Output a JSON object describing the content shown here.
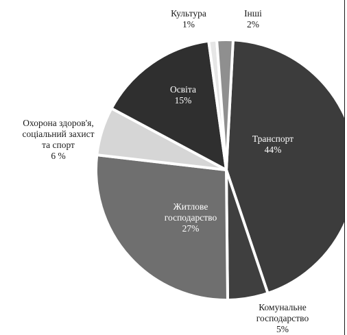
{
  "chart_data": {
    "type": "pie",
    "title": "",
    "slices": [
      {
        "name": "Транспорт",
        "value": 44,
        "label": "44%",
        "color": "#3c3c3c"
      },
      {
        "name": "Комунальне господарство",
        "value": 5,
        "label": "5%",
        "color": "#3f3f3f"
      },
      {
        "name": "Житлове господарство",
        "value": 27,
        "label": "27%",
        "color": "#6f6f6f"
      },
      {
        "name": "Охорона здоров'я, соціальний захист та спорт",
        "value": 6,
        "label": "6 %",
        "color": "#d6d6d6"
      },
      {
        "name": "Освіта",
        "value": 15,
        "label": "15%",
        "color": "#2f2f2f"
      },
      {
        "name": "Культура",
        "value": 1,
        "label": "1%",
        "color": "#e6e6e6"
      },
      {
        "name": "Інші",
        "value": 2,
        "label": "2%",
        "color": "#8f8f8f"
      }
    ],
    "label_lines": [
      [
        "Транспорт",
        "44%"
      ],
      [
        "Комунальне",
        "господарство",
        "5%"
      ],
      [
        "Житлове",
        "господарство",
        "27%"
      ],
      [
        "Охорона здоров'я,",
        "соціальний захист",
        "та спорт",
        "6 %"
      ],
      [
        "Освіта",
        "15%"
      ],
      [
        "Культура",
        "1%"
      ],
      [
        "Інші",
        "2%"
      ]
    ],
    "legend": "none",
    "grid": false
  }
}
